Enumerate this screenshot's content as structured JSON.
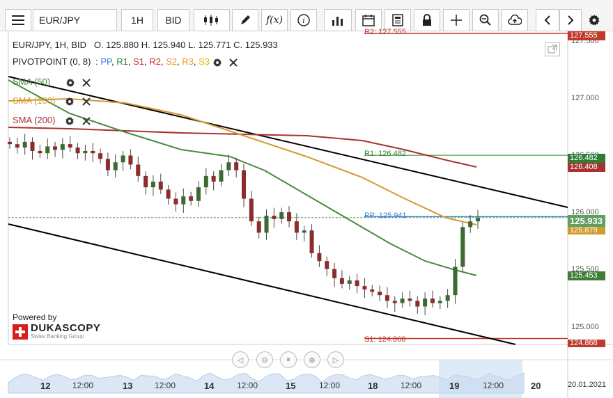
{
  "toolbar": {
    "symbol": "EUR/JPY",
    "timeframe": "1H",
    "price_type": "BID",
    "fx_label": "f(x)"
  },
  "ohlc": {
    "pair": "EUR/JPY, 1H, BID",
    "open_label": "O.",
    "open": "125.880",
    "high_label": "H.",
    "high": "125.940",
    "low_label": "L.",
    "low": "125.771",
    "close_label": "C.",
    "close": "125.933"
  },
  "indicators": {
    "pivot": {
      "label": "PIVOTPOINT (0, 8)",
      "colon": ":",
      "items": [
        {
          "name": "PP",
          "color": "#3d7fd6"
        },
        {
          "name": "R1",
          "color": "#2e8b2e"
        },
        {
          "name": "S1",
          "color": "#c0392b"
        },
        {
          "name": "R2",
          "color": "#c0392b"
        },
        {
          "name": "S2",
          "color": "#e69b25"
        },
        {
          "name": "R3",
          "color": "#e69b25"
        },
        {
          "name": "S3",
          "color": "#e6b800"
        }
      ]
    },
    "sma50": {
      "label": "SMA (50)",
      "color": "#4a8a3e"
    },
    "sma100": {
      "label": "SMA (100)",
      "color": "#d39a2f"
    },
    "sma200": {
      "label": "SMA (200)",
      "color": "#a83232"
    }
  },
  "price_axis": {
    "ticks": [
      "127.500",
      "127.000",
      "126.500",
      "126.000",
      "125.500",
      "125.000"
    ],
    "badges": [
      {
        "name": "r2",
        "value": "127.555",
        "color": "#c0392b"
      },
      {
        "name": "r1",
        "value": "126.482",
        "color": "#2e7d32"
      },
      {
        "name": "sma200",
        "value": "126.408",
        "color": "#a83232"
      },
      {
        "name": "last",
        "value": "125.933",
        "color": "#5fa05f"
      },
      {
        "name": "sma100",
        "value": "125.879",
        "color": "#d39a2f"
      },
      {
        "name": "sma50",
        "value": "125.453",
        "color": "#3f7d3a"
      },
      {
        "name": "s1",
        "value": "124.868",
        "color": "#c0392b"
      }
    ]
  },
  "pivot_lines": {
    "r2": "R2: 127.555",
    "r1": "R1: 126.482",
    "pp": "PP: 125.941",
    "s1": "S1: 124.868"
  },
  "time_axis": [
    "12",
    "12:00",
    "13",
    "12:00",
    "14",
    "12:00",
    "15",
    "12:00",
    "18",
    "12:00",
    "19",
    "12:00",
    "20",
    "20.01.2021"
  ],
  "brand": {
    "powered": "Powered by",
    "name": "DUKASCOPY",
    "sub": "Swiss Banking Group"
  },
  "colors": {
    "sma50": "#4a8a3e",
    "sma100": "#d39a2f",
    "sma200": "#a83232",
    "pp": "#3d7fd6",
    "r1": "#2e8b2e",
    "s1": "#c0392b",
    "candle": "#3b6b32",
    "candle_down": "#8b2d2d"
  },
  "chart_data": {
    "type": "candlestick",
    "symbol": "EUR/JPY",
    "timeframe": "1H",
    "ylim": [
      124.8,
      127.55
    ],
    "close_path": [
      126.58,
      126.55,
      126.6,
      126.52,
      126.5,
      126.56,
      126.53,
      126.58,
      126.55,
      126.5,
      126.52,
      126.5,
      126.45,
      126.35,
      126.42,
      126.48,
      126.4,
      126.3,
      126.2,
      126.25,
      126.18,
      126.1,
      126.05,
      126.12,
      126.08,
      126.2,
      126.3,
      126.25,
      126.35,
      126.42,
      126.35,
      126.1,
      125.9,
      125.8,
      125.95,
      125.92,
      125.98,
      125.9,
      125.8,
      125.82,
      125.62,
      125.55,
      125.48,
      125.4,
      125.35,
      125.38,
      125.33,
      125.3,
      125.28,
      125.25,
      125.2,
      125.18,
      125.22,
      125.2,
      125.15,
      125.22,
      125.18,
      125.2,
      125.25,
      125.5,
      125.85,
      125.9,
      125.93
    ]
  }
}
